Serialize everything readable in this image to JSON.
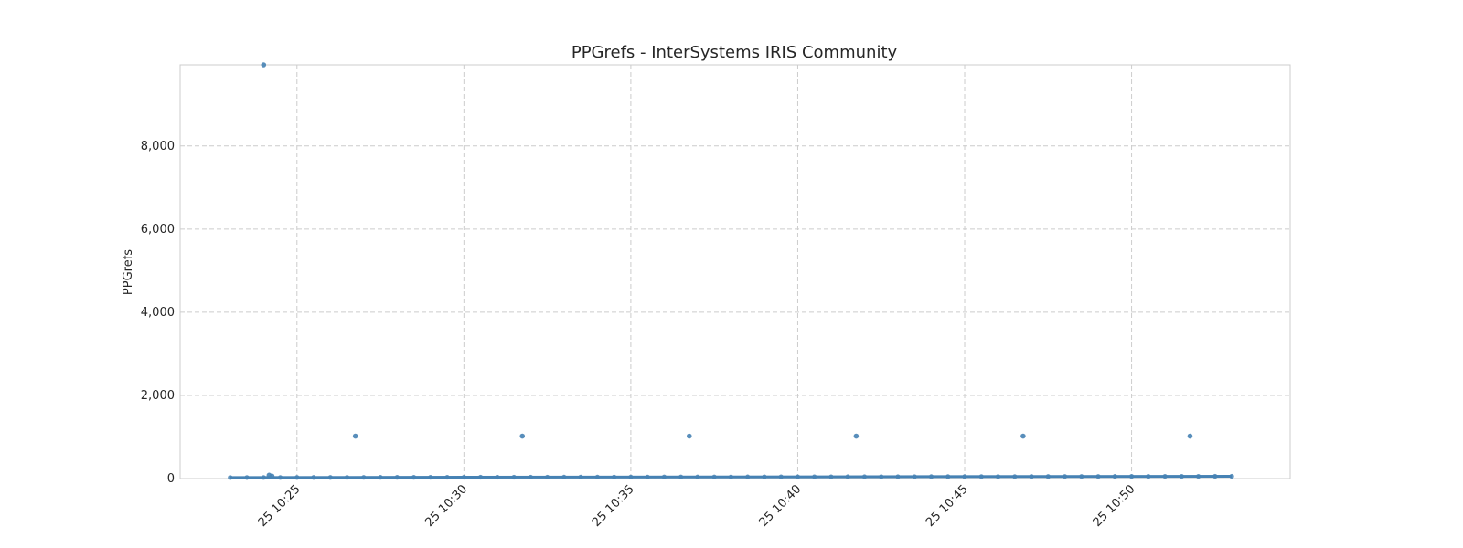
{
  "chart_data": {
    "type": "scatter",
    "title": "PPGrefs - InterSystems IRIS Community",
    "xlabel": "",
    "ylabel": "PPGrefs",
    "xlim": [
      "10:21:30",
      "10:54:45"
    ],
    "ylim": [
      0,
      9950
    ],
    "x_ticks": [
      "25 10:25",
      "25 10:30",
      "25 10:35",
      "25 10:40",
      "25 10:45",
      "25 10:50"
    ],
    "y_ticks": [
      "0",
      "2,000",
      "4,000",
      "6,000",
      "8,000"
    ],
    "grid": true,
    "legend": "none",
    "color": "#4682b4",
    "baseline": {
      "start": "10:23:00",
      "end": "10:53:00",
      "step_seconds": 30,
      "value_start": 25,
      "value_end": 55
    },
    "series": [
      {
        "values": [
          {
            "x": "10:24:00",
            "y": 9950
          },
          {
            "x": "10:24:10",
            "y": 80
          },
          {
            "x": "10:24:15",
            "y": 60
          },
          {
            "x": "10:26:45",
            "y": 1020
          },
          {
            "x": "10:31:45",
            "y": 1020
          },
          {
            "x": "10:36:45",
            "y": 1020
          },
          {
            "x": "10:41:45",
            "y": 1020
          },
          {
            "x": "10:46:45",
            "y": 1020
          },
          {
            "x": "10:51:45",
            "y": 1020
          }
        ]
      }
    ]
  }
}
